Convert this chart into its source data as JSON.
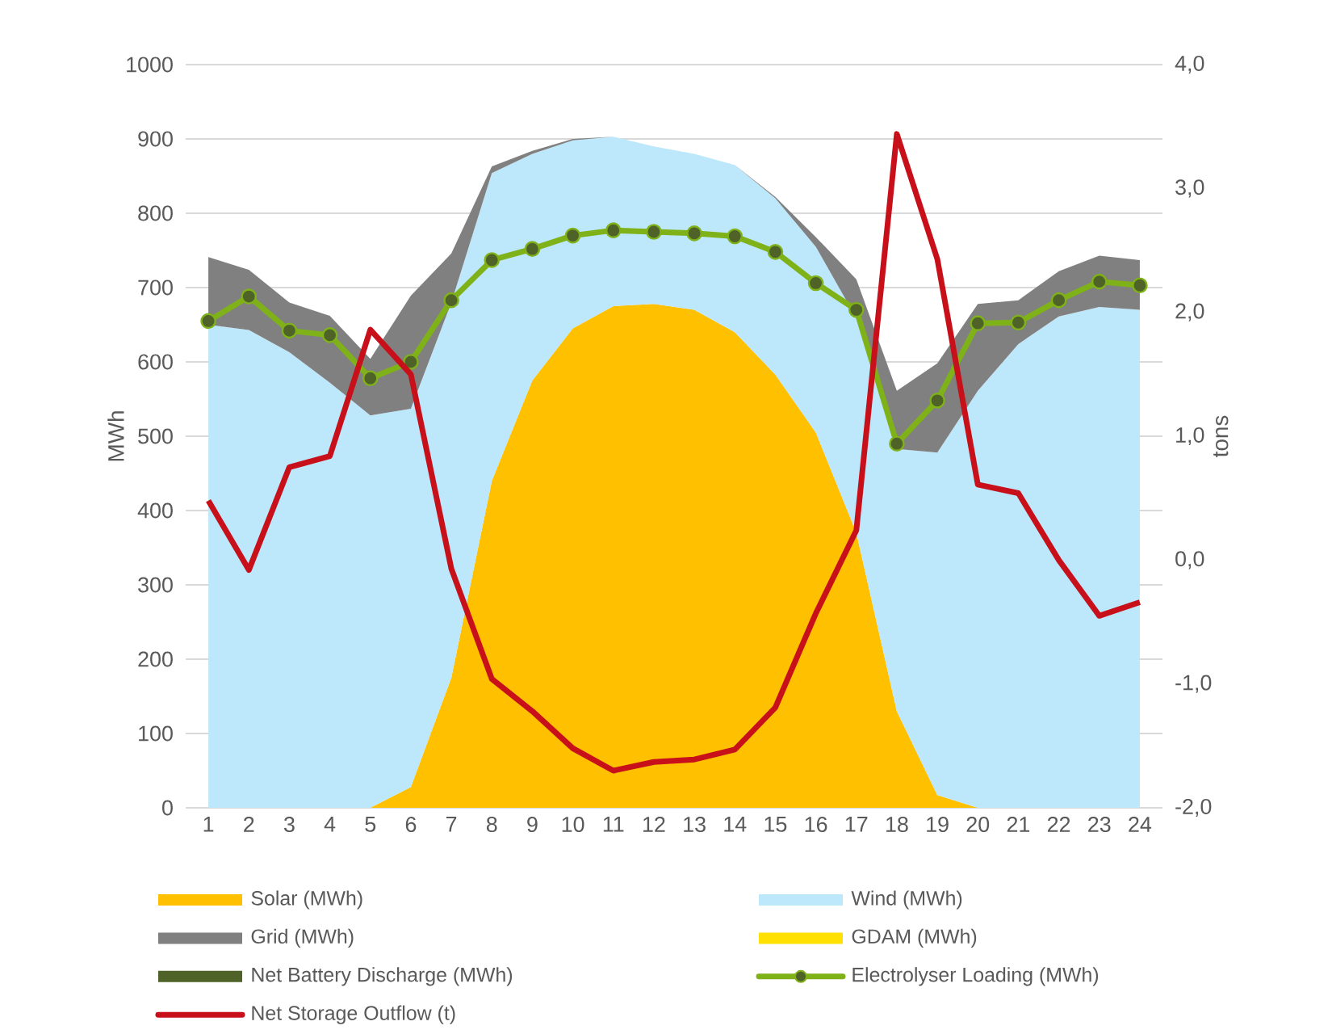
{
  "chart_data": {
    "type": "area",
    "stacked": true,
    "ylabel": "MWh",
    "y2label": "tons",
    "categories": [
      "1",
      "2",
      "3",
      "4",
      "5",
      "6",
      "7",
      "8",
      "9",
      "10",
      "11",
      "12",
      "13",
      "14",
      "15",
      "16",
      "17",
      "18",
      "19",
      "20",
      "21",
      "22",
      "23",
      "24"
    ],
    "series": [
      {
        "name": "Solar (MWh)",
        "color": "#ffc000",
        "values": [
          0,
          0,
          0,
          0,
          0,
          28,
          175,
          440,
          575,
          645,
          675,
          678,
          670,
          640,
          583,
          505,
          370,
          130,
          17,
          0,
          0,
          0,
          0,
          0
        ]
      },
      {
        "name": "Wind (MWh)",
        "color": "#bde7fa",
        "values": [
          650,
          643,
          613,
          572,
          528,
          509,
          505,
          414,
          305,
          253,
          228,
          212,
          210,
          225,
          237,
          250,
          289,
          353,
          461,
          561,
          624,
          661,
          674,
          670
        ]
      },
      {
        "name": "Grid (MWh)",
        "color": "#808080",
        "values": [
          91,
          81,
          67,
          90,
          76,
          152,
          66,
          9,
          4,
          2,
          0,
          0,
          0,
          0,
          2,
          13,
          52,
          78,
          120,
          117,
          59,
          61,
          69,
          67
        ]
      },
      {
        "name": "GDAM (MWh)",
        "color": "#ffe000",
        "values": [
          null,
          null,
          null,
          null,
          null,
          null,
          null,
          null,
          null,
          null,
          null,
          null,
          null,
          null,
          null,
          null,
          null,
          null,
          null,
          null,
          null,
          null,
          null,
          null
        ]
      },
      {
        "name": "Net Battery Discharge (MWh)",
        "color": "#4f6228",
        "values": [
          null,
          null,
          null,
          null,
          null,
          null,
          null,
          null,
          null,
          null,
          null,
          null,
          null,
          null,
          null,
          null,
          null,
          null,
          null,
          null,
          null,
          null,
          null,
          null
        ]
      },
      {
        "name": "Electrolyser Loading (MWh)",
        "type": "line",
        "marker": "circle",
        "color": "#7fb118",
        "values": [
          655,
          688,
          642,
          636,
          578,
          600,
          683,
          737,
          752,
          770,
          777,
          775,
          773,
          769,
          748,
          706,
          670,
          490,
          548,
          652,
          653,
          683,
          708,
          703
        ]
      },
      {
        "name": "Net Storage Outflow (t)",
        "type": "line",
        "axis": "y2",
        "color": "#c8101a",
        "values": [
          0.48,
          -0.08,
          0.75,
          0.84,
          1.86,
          1.5,
          -0.07,
          -0.96,
          -1.22,
          -1.52,
          -1.7,
          -1.63,
          -1.61,
          -1.53,
          -1.19,
          -0.43,
          0.24,
          3.44,
          2.43,
          0.61,
          0.54,
          0.0,
          -0.45,
          -0.34
        ]
      }
    ],
    "ylim": [
      0,
      1000
    ],
    "yticks": [
      0,
      100,
      200,
      300,
      400,
      500,
      600,
      700,
      800,
      900,
      1000
    ],
    "y2lim": [
      -2,
      4
    ],
    "y2ticks": [
      {
        "value": -2,
        "label": "-2,0"
      },
      {
        "value": -1,
        "label": "-1,0"
      },
      {
        "value": 0,
        "label": "0,0"
      },
      {
        "value": 1,
        "label": "1,0"
      },
      {
        "value": 2,
        "label": "2,0"
      },
      {
        "value": 3,
        "label": "3,0"
      },
      {
        "value": 4,
        "label": "4,0"
      }
    ],
    "grid": "y",
    "legend": "bottom"
  }
}
